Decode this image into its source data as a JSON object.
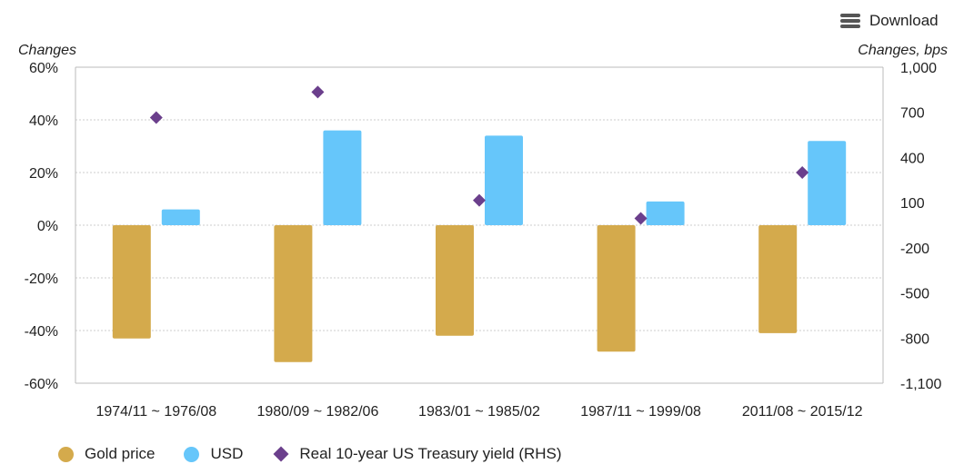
{
  "toolbar": {
    "download_label": "Download",
    "download_icon": "hamburger-menu-icon"
  },
  "chart_data": {
    "type": "bar",
    "categories": [
      "1974/11 ~ 1976/08",
      "1980/09 ~ 1982/06",
      "1983/01 ~ 1985/02",
      "1987/11 ~ 1999/08",
      "2011/08 ~ 2015/12"
    ],
    "left_axis": {
      "label": "Changes",
      "ylim": [
        -60,
        60
      ],
      "ticks": [
        60,
        40,
        20,
        0,
        -20,
        -40,
        -60
      ],
      "tick_labels": [
        "60%",
        "40%",
        "20%",
        "0%",
        "-20%",
        "-40%",
        "-60%"
      ]
    },
    "right_axis": {
      "label": "Changes, bps",
      "ylim": [
        -1100,
        1000
      ],
      "ticks": [
        1000,
        700,
        400,
        100,
        -200,
        -500,
        -800,
        -1100
      ],
      "tick_labels": [
        "1,000",
        "700",
        "400",
        "100",
        "-200",
        "-500",
        "-800",
        "-1,100"
      ]
    },
    "series": [
      {
        "name": "Gold price",
        "type": "bar",
        "axis": "left",
        "color": "#D4AA4C",
        "values": [
          -43,
          -52,
          -42,
          -48,
          -41
        ]
      },
      {
        "name": "USD",
        "type": "bar",
        "axis": "left",
        "color": "#66C6FA",
        "values": [
          6,
          36,
          34,
          9,
          32
        ]
      },
      {
        "name": "Real 10-year US Treasury yield (RHS)",
        "type": "scatter",
        "axis": "right",
        "color": "#6B3F8C",
        "values": [
          665,
          835,
          115,
          -5,
          300
        ]
      }
    ],
    "grid": true,
    "legend_position": "bottom-left"
  }
}
